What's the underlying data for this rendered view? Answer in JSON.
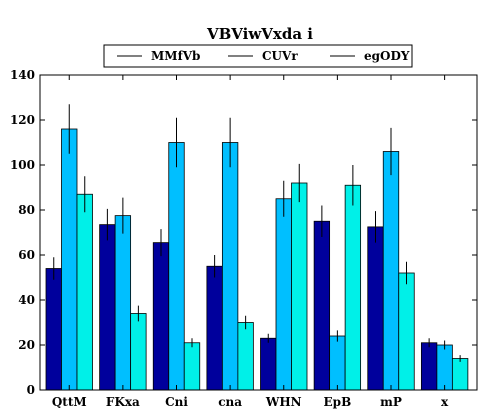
{
  "chart_data": {
    "type": "bar",
    "title": "VBViwVxda i",
    "xlabel": "",
    "ylabel": "",
    "categories": [
      "QttM",
      "FKxa",
      "Cni",
      "cna",
      "WHN",
      "EpB",
      "mP",
      "x"
    ],
    "ylim": [
      0,
      140
    ],
    "yticks": [
      0,
      20,
      40,
      60,
      80,
      100,
      120,
      140
    ],
    "legend_position": "top-center",
    "grid": false,
    "series": [
      {
        "name": "MMfVb",
        "color": "#00009c",
        "values": [
          54,
          73.5,
          65.5,
          55,
          23,
          75,
          72.5,
          21
        ],
        "errors": [
          5,
          7,
          6,
          5,
          2,
          7,
          7,
          2
        ]
      },
      {
        "name": "CUVr",
        "color": "#00bfff",
        "values": [
          116,
          77.5,
          110,
          110,
          85,
          24,
          106,
          20
        ],
        "errors": [
          11,
          8,
          11,
          11,
          8,
          2.5,
          10.5,
          2
        ]
      },
      {
        "name": "egODY",
        "color": "#00f0e8",
        "values": [
          87,
          34,
          21,
          30,
          92,
          91,
          52,
          14
        ],
        "errors": [
          8,
          3.5,
          2,
          3,
          8.5,
          9,
          5,
          1.5
        ]
      }
    ]
  }
}
